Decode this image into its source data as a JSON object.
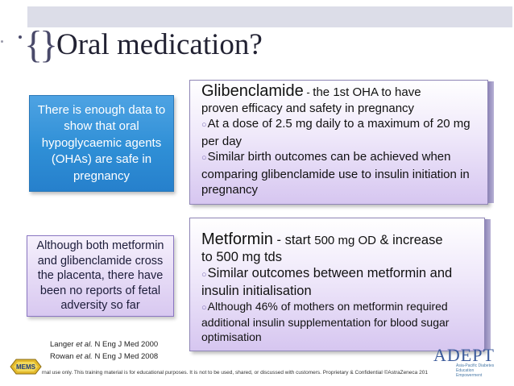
{
  "slide": {
    "title": "Oral medication?",
    "brace": "{}",
    "blue_box_text": "There is enough data to show that oral hypoglycaemic agents (OHAs) are safe in pregnancy",
    "purple_box_text": "Although both metformin and glibenclamide cross the placenta, there have been no reports of fetal adversity so far",
    "references": [
      {
        "author": "Langer",
        "etal": "et al.",
        "rest": " N Eng J Med 2000"
      },
      {
        "author": "Rowan",
        "etal": "et al.",
        "rest": " N Eng J Med 2008"
      }
    ],
    "glibenclamide": {
      "heading": "Glibenclamide",
      "dash": " - ",
      "heading_rest": "the 1st OHA to have",
      "line2": "proven efficacy and safety in pregnancy",
      "bullets": [
        "At a dose of 2.5 mg daily to a maximum of 20 mg per day",
        "Similar birth outcomes can be achieved when comparing glibenclamide use to insulin initiation in pregnancy"
      ]
    },
    "metformin": {
      "heading": "Metformin",
      "heading_rest": " - start ",
      "dose": "500 mg OD",
      "heading_tail": " & increase",
      "line2": "to 500 mg tds",
      "bullets": [
        "Similar outcomes between metformin and insulin initialisation",
        "Although 46% of mothers on metformin required additional insulin supplementation for blood sugar optimisation"
      ]
    },
    "footer": "rnal use only. This training material is for educational purposes. It is not to be used, shared, or discussed with customers. Proprietary & Confidential ©AstraZeneca 201",
    "logos": {
      "mems": "MEMS",
      "adept": "ADEPT",
      "adept_sub": "Asia-Pacific Diabetes Education Empowerment"
    }
  },
  "colors": {
    "blue_box": "#2f8fd6",
    "purple_box": "#e6dbf6",
    "title": "#222233",
    "adept": "#3b5a9a"
  }
}
